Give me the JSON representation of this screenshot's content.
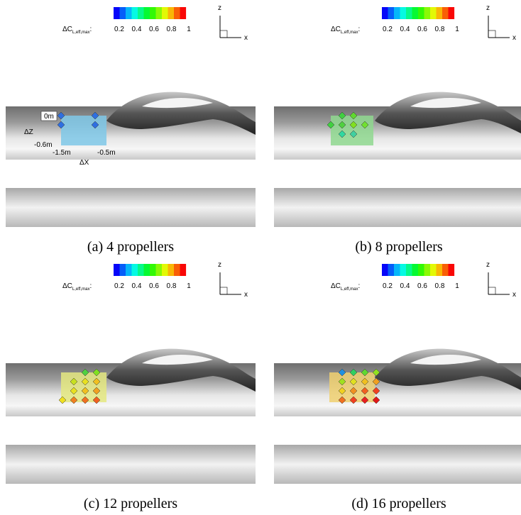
{
  "panels": [
    {
      "caption": "(a) 4 propellers",
      "colorbar": {
        "symbol": "ΔC",
        "subscript": "L,eff,max",
        "suffix": ":",
        "ticks": [
          0.2,
          0.4,
          0.6,
          0.8,
          1
        ]
      },
      "axes": {
        "z": "z",
        "x": "x"
      },
      "annotations": {
        "z_top": "0m",
        "z_label": "ΔZ",
        "z_bottom": "-0.6m",
        "x_left": "-1.5m",
        "x_right": "-0.5m",
        "x_label": "ΔX"
      }
    },
    {
      "caption": "(b) 8 propellers",
      "colorbar": {
        "symbol": "ΔC",
        "subscript": "L,eff,max",
        "suffix": ":",
        "ticks": [
          0.2,
          0.4,
          0.6,
          0.8,
          1
        ]
      },
      "axes": {
        "z": "z",
        "x": "x"
      }
    },
    {
      "caption": "(c) 12 propellers",
      "colorbar": {
        "symbol": "ΔC",
        "subscript": "L,eff,max",
        "suffix": ":",
        "ticks": [
          0.2,
          0.4,
          0.6,
          0.8,
          1
        ]
      },
      "axes": {
        "z": "z",
        "x": "x"
      }
    },
    {
      "caption": "(d) 16 propellers",
      "colorbar": {
        "symbol": "ΔC",
        "subscript": "L,eff,max",
        "suffix": ":",
        "ticks": [
          0.2,
          0.4,
          0.6,
          0.8,
          1
        ]
      },
      "axes": {
        "z": "z",
        "x": "x"
      }
    }
  ]
}
